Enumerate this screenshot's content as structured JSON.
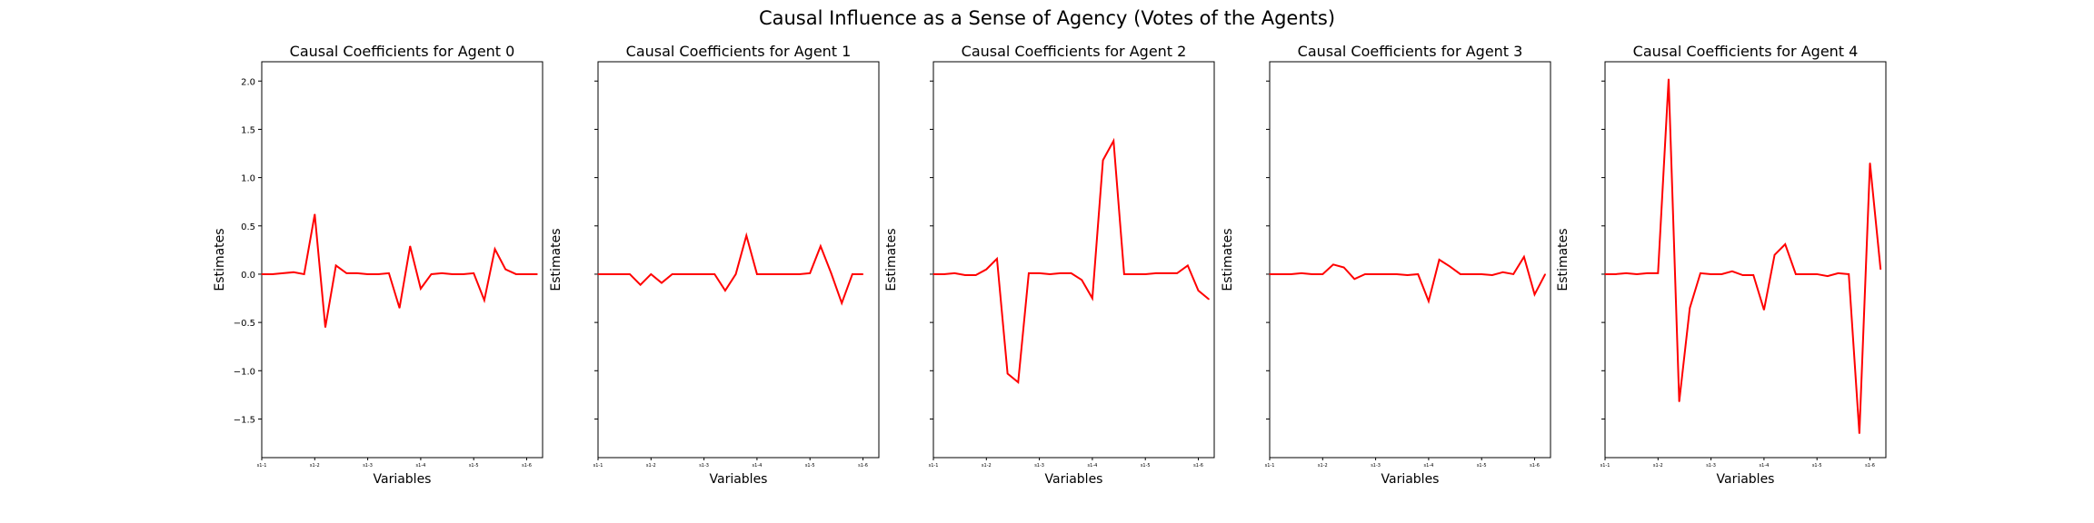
{
  "figure": {
    "title": "Causal Influence as a Sense of Agency (Votes of the Agents)",
    "line_color": "#ff0000"
  },
  "chart_data": [
    {
      "type": "line",
      "title": "Causal Coefficients for Agent 0",
      "xlabel": "Variables",
      "ylabel": "Estimates",
      "ylim": [
        -1.9,
        2.2
      ],
      "yticks": [
        -1.5,
        -1.0,
        -0.5,
        0.0,
        0.5,
        1.0,
        1.5,
        2.0
      ],
      "ytick_labels": [
        "−1.5",
        "−1.0",
        "−0.5",
        "0.0",
        "0.5",
        "1.0",
        "1.5",
        "2.0"
      ],
      "xlim": [
        0,
        26.5
      ],
      "xticks": [
        0,
        5,
        10,
        15,
        20,
        25
      ],
      "xtick_labels": [
        "s1-1",
        "s1-2",
        "s1-3",
        "s1-4",
        "s1-5",
        "s1-6"
      ],
      "show_y_tick_labels": true,
      "grid": false,
      "series": [
        {
          "x": [
            0,
            1,
            2,
            3,
            4,
            5,
            6,
            7,
            8,
            9,
            10,
            11,
            12,
            13,
            14,
            15,
            16,
            17,
            18,
            19,
            20,
            21,
            22,
            23,
            24,
            25,
            26
          ],
          "y": [
            0.0,
            0.0,
            0.01,
            0.02,
            0.0,
            0.62,
            -0.55,
            0.09,
            0.01,
            0.01,
            0.0,
            0.0,
            0.01,
            -0.35,
            0.29,
            -0.15,
            0.0,
            0.01,
            0.0,
            0.0,
            0.01,
            -0.27,
            0.26,
            0.05,
            0.0,
            0.0,
            0.0
          ]
        }
      ]
    },
    {
      "type": "line",
      "title": "Causal Coefficients for Agent 1",
      "xlabel": "Variables",
      "ylabel": "Estimates",
      "ylim": [
        -1.9,
        2.2
      ],
      "yticks": [
        -1.5,
        -1.0,
        -0.5,
        0.0,
        0.5,
        1.0,
        1.5,
        2.0
      ],
      "xlim": [
        0,
        26.5
      ],
      "xticks": [
        0,
        5,
        10,
        15,
        20,
        25
      ],
      "xtick_labels": [
        "s1-1",
        "s1-2",
        "s1-3",
        "s1-4",
        "s1-5",
        "s1-6"
      ],
      "show_y_tick_labels": false,
      "grid": false,
      "series": [
        {
          "x": [
            0,
            1,
            2,
            3,
            4,
            5,
            6,
            7,
            8,
            9,
            10,
            11,
            12,
            13,
            14,
            15,
            16,
            17,
            18,
            19,
            20,
            21,
            22,
            23,
            24,
            25
          ],
          "y": [
            0.0,
            0.0,
            0.0,
            0.0,
            -0.11,
            0.0,
            -0.09,
            0.0,
            0.0,
            0.0,
            0.0,
            0.0,
            -0.17,
            0.0,
            0.4,
            0.0,
            0.0,
            0.0,
            0.0,
            0.0,
            0.01,
            0.29,
            0.01,
            -0.3,
            0.0,
            0.0
          ]
        }
      ]
    },
    {
      "type": "line",
      "title": "Causal Coefficients for Agent 2",
      "xlabel": "Variables",
      "ylabel": "Estimates",
      "ylim": [
        -1.9,
        2.2
      ],
      "yticks": [
        -1.5,
        -1.0,
        -0.5,
        0.0,
        0.5,
        1.0,
        1.5,
        2.0
      ],
      "xlim": [
        0,
        26.5
      ],
      "xticks": [
        0,
        5,
        10,
        15,
        20,
        25
      ],
      "xtick_labels": [
        "s1-1",
        "s1-2",
        "s1-3",
        "s1-4",
        "s1-5",
        "s1-6"
      ],
      "show_y_tick_labels": false,
      "grid": false,
      "series": [
        {
          "x": [
            0,
            1,
            2,
            3,
            4,
            5,
            6,
            7,
            8,
            9,
            10,
            11,
            12,
            13,
            14,
            15,
            16,
            17,
            18,
            19,
            20,
            21,
            22,
            23,
            24,
            25,
            26
          ],
          "y": [
            0.0,
            0.0,
            0.01,
            -0.01,
            -0.01,
            0.05,
            0.16,
            -1.03,
            -1.12,
            0.01,
            0.01,
            0.0,
            0.01,
            0.01,
            -0.06,
            -0.25,
            1.18,
            1.38,
            0.0,
            0.0,
            0.0,
            0.01,
            0.01,
            0.01,
            0.09,
            -0.17,
            -0.26
          ]
        }
      ]
    },
    {
      "type": "line",
      "title": "Causal Coefficients for Agent 3",
      "xlabel": "Variables",
      "ylabel": "Estimates",
      "ylim": [
        -1.9,
        2.2
      ],
      "yticks": [
        -1.5,
        -1.0,
        -0.5,
        0.0,
        0.5,
        1.0,
        1.5,
        2.0
      ],
      "xlim": [
        0,
        26.5
      ],
      "xticks": [
        0,
        5,
        10,
        15,
        20,
        25
      ],
      "xtick_labels": [
        "s1-1",
        "s1-2",
        "s1-3",
        "s1-4",
        "s1-5",
        "s1-6"
      ],
      "show_y_tick_labels": false,
      "grid": false,
      "series": [
        {
          "x": [
            0,
            1,
            2,
            3,
            4,
            5,
            6,
            7,
            8,
            9,
            10,
            11,
            12,
            13,
            14,
            15,
            16,
            17,
            18,
            19,
            20,
            21,
            22,
            23,
            24,
            25,
            26
          ],
          "y": [
            0.0,
            0.0,
            0.0,
            0.01,
            0.0,
            0.0,
            0.1,
            0.07,
            -0.05,
            0.0,
            0.0,
            0.0,
            0.0,
            -0.01,
            0.0,
            -0.28,
            0.15,
            0.08,
            0.0,
            0.0,
            0.0,
            -0.01,
            0.02,
            0.0,
            0.18,
            -0.21,
            0.0
          ]
        }
      ]
    },
    {
      "type": "line",
      "title": "Causal Coefficients for Agent 4",
      "xlabel": "Variables",
      "ylabel": "Estimates",
      "ylim": [
        -1.9,
        2.2
      ],
      "yticks": [
        -1.5,
        -1.0,
        -0.5,
        0.0,
        0.5,
        1.0,
        1.5,
        2.0
      ],
      "xlim": [
        0,
        26.5
      ],
      "xticks": [
        0,
        5,
        10,
        15,
        20,
        25
      ],
      "xtick_labels": [
        "s1-1",
        "s1-2",
        "s1-3",
        "s1-4",
        "s1-5",
        "s1-6"
      ],
      "show_y_tick_labels": false,
      "grid": false,
      "series": [
        {
          "x": [
            0,
            1,
            2,
            3,
            4,
            5,
            6,
            7,
            8,
            9,
            10,
            11,
            12,
            13,
            14,
            15,
            16,
            17,
            18,
            19,
            20,
            21,
            22,
            23,
            24,
            25,
            26
          ],
          "y": [
            0.0,
            0.0,
            0.01,
            0.0,
            0.01,
            0.01,
            2.02,
            -1.32,
            -0.35,
            0.01,
            0.0,
            0.0,
            0.03,
            -0.01,
            -0.01,
            -0.37,
            0.2,
            0.31,
            0.0,
            0.0,
            0.0,
            -0.02,
            0.01,
            0.0,
            -1.65,
            1.15,
            0.05
          ]
        }
      ]
    }
  ]
}
